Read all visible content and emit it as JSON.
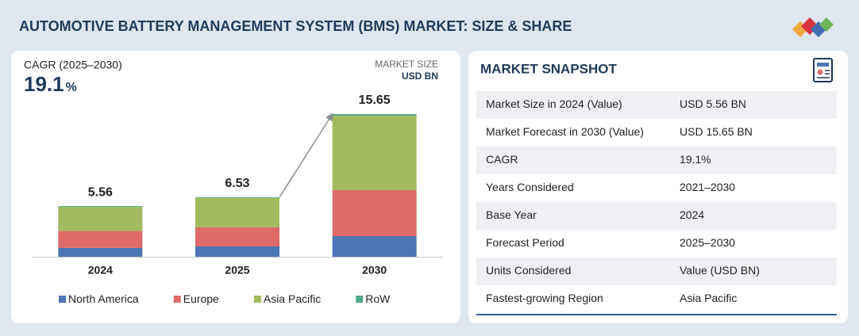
{
  "header": {
    "title": "AUTOMOTIVE BATTERY MANAGEMENT SYSTEM (BMS) MARKET: SIZE & SHARE"
  },
  "chart_data": {
    "type": "stacked-bar",
    "cagr_label": "CAGR (2025–2030)",
    "cagr_value": 19.1,
    "cagr_unit": "%",
    "unit_label": "MARKET SIZE",
    "unit": "USD BN",
    "categories": [
      "2024",
      "2025",
      "2030"
    ],
    "totals": [
      5.56,
      6.53,
      15.65
    ],
    "series": [
      {
        "name": "North America",
        "color": "#4d76b6",
        "values": [
          0.97,
          1.13,
          2.26
        ]
      },
      {
        "name": "Europe",
        "color": "#de6a6a",
        "values": [
          1.85,
          2.09,
          5.04
        ]
      },
      {
        "name": "Asia Pacific",
        "color": "#a3bb5e",
        "values": [
          2.65,
          3.22,
          8.17
        ]
      },
      {
        "name": "RoW",
        "color": "#4fa88a",
        "values": [
          0.09,
          0.09,
          0.18
        ]
      }
    ],
    "legend": "bottom"
  },
  "snapshot": {
    "title": "MARKET SNAPSHOT",
    "rows": [
      [
        "Market Size in 2024 (Value)",
        "USD 5.56 BN"
      ],
      [
        "Market Forecast in 2030 (Value)",
        "USD 15.65 BN"
      ],
      [
        "CAGR",
        "19.1%"
      ],
      [
        "Years Considered",
        "2021–2030"
      ],
      [
        "Base Year",
        "2024"
      ],
      [
        "Forecast Period",
        "2025–2030"
      ],
      [
        "Units Considered",
        "Value (USD BN)"
      ],
      [
        "Fastest-growing Region",
        "Asia Pacific"
      ]
    ]
  }
}
